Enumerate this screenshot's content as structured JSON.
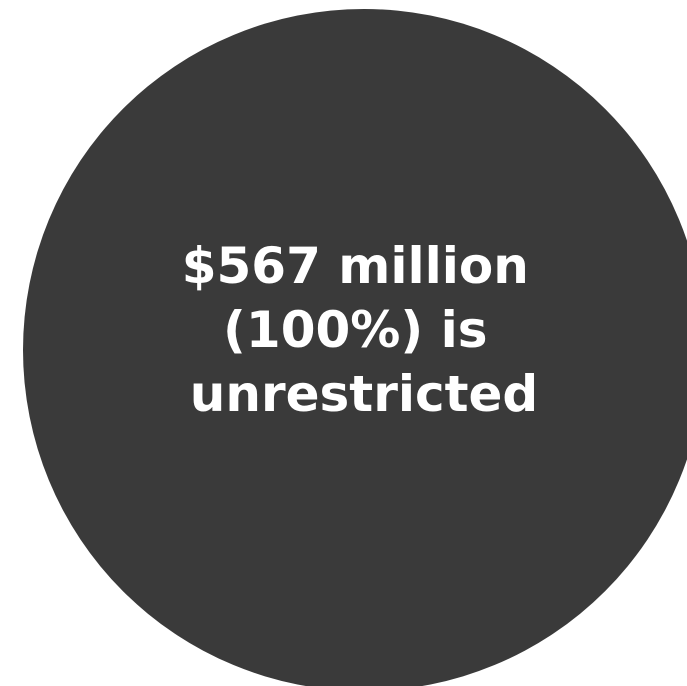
{
  "chart_data": {
    "type": "pie",
    "slices": [
      {
        "label_lines": [
          "$567 million",
          "(100%) is",
          "unrestricted"
        ],
        "value_millions": 567,
        "percent": 100,
        "color": "#3a3a3a"
      }
    ],
    "title": "",
    "legend": "none"
  }
}
